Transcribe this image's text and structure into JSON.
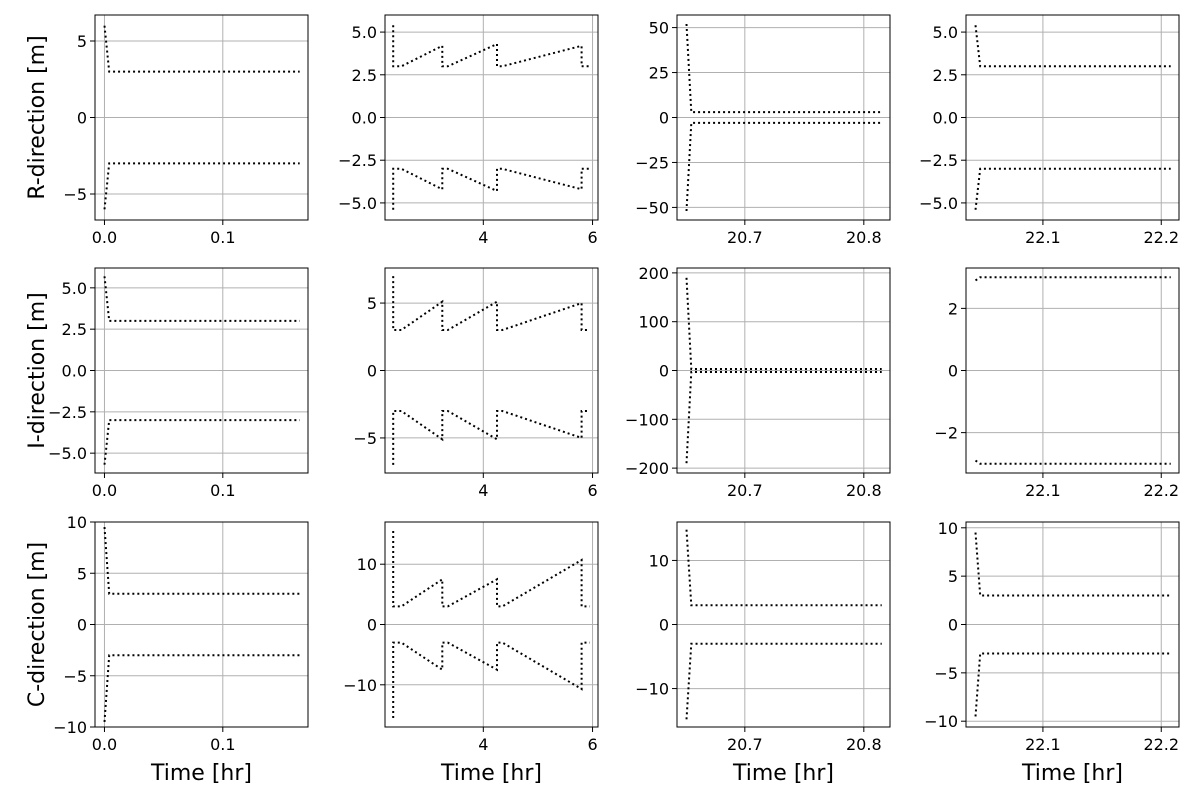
{
  "chart_data": [
    {
      "type": "line",
      "row": 0,
      "col": 0,
      "ylabel": "R-direction [m]",
      "xlabel": "",
      "xlim": [
        -0.008,
        0.172
      ],
      "ylim": [
        -6.7,
        6.7
      ],
      "xticks": [
        0.0,
        0.1
      ],
      "xtick_labels": [
        "0.0",
        "0.1"
      ],
      "yticks": [
        -5,
        0,
        5
      ],
      "ytick_labels": [
        "−5",
        "0",
        "5"
      ],
      "grid": true,
      "series": [
        {
          "x": [
            0.0,
            0.004,
            0.165
          ],
          "y": [
            6.0,
            3.0,
            3.0
          ]
        },
        {
          "x": [
            0.0,
            0.004,
            0.165
          ],
          "y": [
            -6.0,
            -3.0,
            -3.0
          ]
        }
      ]
    },
    {
      "type": "line",
      "row": 0,
      "col": 1,
      "ylabel": "",
      "xlabel": "",
      "xlim": [
        2.2,
        6.1
      ],
      "ylim": [
        -6.0,
        6.0
      ],
      "xticks": [
        4,
        6
      ],
      "xtick_labels": [
        "4",
        "6"
      ],
      "yticks": [
        -5.0,
        -2.5,
        0.0,
        2.5,
        5.0
      ],
      "ytick_labels": [
        "−5.0",
        "−2.5",
        "0.0",
        "2.5",
        "5.0"
      ],
      "grid": true,
      "series": [
        {
          "x": [
            2.35,
            2.35,
            2.5,
            3.25,
            3.25,
            3.35,
            4.25,
            4.25,
            4.35,
            5.8,
            5.8,
            5.9,
            5.95
          ],
          "y": [
            5.4,
            3.0,
            3.0,
            4.2,
            3.0,
            3.0,
            4.3,
            3.0,
            3.0,
            4.2,
            3.0,
            3.0,
            3.0
          ]
        },
        {
          "x": [
            2.35,
            2.35,
            2.5,
            3.25,
            3.25,
            3.35,
            4.25,
            4.25,
            4.35,
            5.8,
            5.8,
            5.9,
            5.95
          ],
          "y": [
            -5.4,
            -3.0,
            -3.0,
            -4.2,
            -3.0,
            -3.0,
            -4.3,
            -3.0,
            -3.0,
            -4.2,
            -3.0,
            -3.0,
            -3.0
          ]
        }
      ]
    },
    {
      "type": "line",
      "row": 0,
      "col": 2,
      "ylabel": "",
      "xlabel": "",
      "xlim": [
        20.643,
        20.822
      ],
      "ylim": [
        -57,
        57
      ],
      "xticks": [
        20.7,
        20.8
      ],
      "xtick_labels": [
        "20.7",
        "20.8"
      ],
      "yticks": [
        -50,
        -25,
        0,
        25,
        50
      ],
      "ytick_labels": [
        "−50",
        "−25",
        "0",
        "25",
        "50"
      ],
      "grid": true,
      "series": [
        {
          "x": [
            20.651,
            20.655,
            20.815
          ],
          "y": [
            52,
            3.0,
            3.0
          ]
        },
        {
          "x": [
            20.651,
            20.655,
            20.815
          ],
          "y": [
            -52,
            -3.0,
            -3.0
          ]
        }
      ]
    },
    {
      "type": "line",
      "row": 0,
      "col": 3,
      "ylabel": "",
      "xlabel": "",
      "xlim": [
        22.035,
        22.215
      ],
      "ylim": [
        -6.0,
        6.0
      ],
      "xticks": [
        22.1,
        22.2
      ],
      "xtick_labels": [
        "22.1",
        "22.2"
      ],
      "yticks": [
        -5.0,
        -2.5,
        0.0,
        2.5,
        5.0
      ],
      "ytick_labels": [
        "−5.0",
        "−2.5",
        "0.0",
        "2.5",
        "5.0"
      ],
      "grid": true,
      "series": [
        {
          "x": [
            22.043,
            22.047,
            22.208
          ],
          "y": [
            5.4,
            3.0,
            3.0
          ]
        },
        {
          "x": [
            22.043,
            22.047,
            22.208
          ],
          "y": [
            -5.4,
            -3.0,
            -3.0
          ]
        }
      ]
    },
    {
      "type": "line",
      "row": 1,
      "col": 0,
      "ylabel": "I-direction [m]",
      "xlabel": "",
      "xlim": [
        -0.008,
        0.172
      ],
      "ylim": [
        -6.2,
        6.2
      ],
      "xticks": [
        0.0,
        0.1
      ],
      "xtick_labels": [
        "0.0",
        "0.1"
      ],
      "yticks": [
        -5.0,
        -2.5,
        0.0,
        2.5,
        5.0
      ],
      "ytick_labels": [
        "−5.0",
        "−2.5",
        "0.0",
        "2.5",
        "5.0"
      ],
      "grid": true,
      "series": [
        {
          "x": [
            0.0,
            0.004,
            0.165
          ],
          "y": [
            5.7,
            3.0,
            3.0
          ]
        },
        {
          "x": [
            0.0,
            0.004,
            0.165
          ],
          "y": [
            -5.7,
            -3.0,
            -3.0
          ]
        }
      ]
    },
    {
      "type": "line",
      "row": 1,
      "col": 1,
      "ylabel": "",
      "xlabel": "",
      "xlim": [
        2.2,
        6.1
      ],
      "ylim": [
        -7.6,
        7.6
      ],
      "xticks": [
        4,
        6
      ],
      "xtick_labels": [
        "4",
        "6"
      ],
      "yticks": [
        -5,
        0,
        5
      ],
      "ytick_labels": [
        "−5",
        "0",
        "5"
      ],
      "grid": true,
      "series": [
        {
          "x": [
            2.35,
            2.35,
            2.5,
            3.25,
            3.25,
            3.35,
            4.25,
            4.25,
            4.35,
            5.8,
            5.8,
            5.9,
            5.95
          ],
          "y": [
            7.0,
            3.0,
            3.0,
            5.1,
            3.0,
            3.0,
            5.1,
            3.0,
            3.0,
            5.0,
            3.0,
            3.0,
            3.0
          ]
        },
        {
          "x": [
            2.35,
            2.35,
            2.5,
            3.25,
            3.25,
            3.35,
            4.25,
            4.25,
            4.35,
            5.8,
            5.8,
            5.9,
            5.95
          ],
          "y": [
            -7.0,
            -3.0,
            -3.0,
            -5.1,
            -3.0,
            -3.0,
            -5.1,
            -3.0,
            -3.0,
            -5.0,
            -3.0,
            -3.0,
            -3.0
          ]
        }
      ]
    },
    {
      "type": "line",
      "row": 1,
      "col": 2,
      "ylabel": "",
      "xlabel": "",
      "xlim": [
        20.643,
        20.822
      ],
      "ylim": [
        -210,
        210
      ],
      "xticks": [
        20.7,
        20.8
      ],
      "xtick_labels": [
        "20.7",
        "20.8"
      ],
      "yticks": [
        -200,
        -100,
        0,
        100,
        200
      ],
      "ytick_labels": [
        "−200",
        "−100",
        "0",
        "100",
        "200"
      ],
      "grid": true,
      "series": [
        {
          "x": [
            20.651,
            20.655,
            20.815
          ],
          "y": [
            190,
            3.0,
            3.0
          ]
        },
        {
          "x": [
            20.651,
            20.655,
            20.815
          ],
          "y": [
            -190,
            -3.0,
            -3.0
          ]
        }
      ]
    },
    {
      "type": "line",
      "row": 1,
      "col": 3,
      "ylabel": "",
      "xlabel": "",
      "xlim": [
        22.035,
        22.215
      ],
      "ylim": [
        -3.3,
        3.3
      ],
      "xticks": [
        22.1,
        22.2
      ],
      "xtick_labels": [
        "22.1",
        "22.2"
      ],
      "yticks": [
        -2,
        0,
        2
      ],
      "ytick_labels": [
        "−2",
        "0",
        "2"
      ],
      "grid": true,
      "series": [
        {
          "x": [
            22.043,
            22.047,
            22.208
          ],
          "y": [
            2.9,
            3.0,
            3.0
          ]
        },
        {
          "x": [
            22.043,
            22.047,
            22.208
          ],
          "y": [
            -2.9,
            -3.0,
            -3.0
          ]
        }
      ]
    },
    {
      "type": "line",
      "row": 2,
      "col": 0,
      "ylabel": "C-direction [m]",
      "xlabel": "Time [hr]",
      "xlim": [
        -0.008,
        0.172
      ],
      "ylim": [
        -10.0,
        10.0
      ],
      "xticks": [
        0.0,
        0.1
      ],
      "xtick_labels": [
        "0.0",
        "0.1"
      ],
      "yticks": [
        -10,
        -5,
        0,
        5,
        10
      ],
      "ytick_labels": [
        "−10",
        "−5",
        "0",
        "5",
        "10"
      ],
      "grid": true,
      "series": [
        {
          "x": [
            0.0,
            0.004,
            0.165
          ],
          "y": [
            9.5,
            3.0,
            3.0
          ]
        },
        {
          "x": [
            0.0,
            0.004,
            0.165
          ],
          "y": [
            -9.5,
            -3.0,
            -3.0
          ]
        }
      ]
    },
    {
      "type": "line",
      "row": 2,
      "col": 1,
      "ylabel": "",
      "xlabel": "Time [hr]",
      "xlim": [
        2.2,
        6.1
      ],
      "ylim": [
        -17,
        17
      ],
      "xticks": [
        4,
        6
      ],
      "xtick_labels": [
        "4",
        "6"
      ],
      "yticks": [
        -10,
        0,
        10
      ],
      "ytick_labels": [
        "−10",
        "0",
        "10"
      ],
      "grid": true,
      "series": [
        {
          "x": [
            2.35,
            2.35,
            2.5,
            3.25,
            3.25,
            3.35,
            4.25,
            4.25,
            4.35,
            5.8,
            5.8,
            5.9,
            5.95
          ],
          "y": [
            15.5,
            3.0,
            3.0,
            7.5,
            3.0,
            3.0,
            7.5,
            3.0,
            3.0,
            10.7,
            3.0,
            3.0,
            3.0
          ]
        },
        {
          "x": [
            2.35,
            2.35,
            2.5,
            3.25,
            3.25,
            3.35,
            4.25,
            4.25,
            4.35,
            5.8,
            5.8,
            5.9,
            5.95
          ],
          "y": [
            -15.5,
            -3.0,
            -3.0,
            -7.5,
            -3.0,
            -3.0,
            -7.5,
            -3.0,
            -3.0,
            -10.7,
            -3.0,
            -3.0,
            -3.0
          ]
        }
      ]
    },
    {
      "type": "line",
      "row": 2,
      "col": 2,
      "ylabel": "",
      "xlabel": "Time [hr]",
      "xlim": [
        20.643,
        20.822
      ],
      "ylim": [
        -16,
        16
      ],
      "xticks": [
        20.7,
        20.8
      ],
      "xtick_labels": [
        "20.7",
        "20.8"
      ],
      "yticks": [
        -10,
        0,
        10
      ],
      "ytick_labels": [
        "−10",
        "0",
        "10"
      ],
      "grid": true,
      "series": [
        {
          "x": [
            20.651,
            20.655,
            20.815
          ],
          "y": [
            14.8,
            3.0,
            3.0
          ]
        },
        {
          "x": [
            20.651,
            20.655,
            20.815
          ],
          "y": [
            -14.8,
            -3.0,
            -3.0
          ]
        }
      ]
    },
    {
      "type": "line",
      "row": 2,
      "col": 3,
      "ylabel": "",
      "xlabel": "Time [hr]",
      "xlim": [
        22.035,
        22.215
      ],
      "ylim": [
        -10.6,
        10.6
      ],
      "xticks": [
        22.1,
        22.2
      ],
      "xtick_labels": [
        "22.1",
        "22.2"
      ],
      "yticks": [
        -10,
        -5,
        0,
        5,
        10
      ],
      "ytick_labels": [
        "−10",
        "−5",
        "0",
        "5",
        "10"
      ],
      "grid": true,
      "series": [
        {
          "x": [
            22.043,
            22.047,
            22.208
          ],
          "y": [
            9.5,
            3.0,
            3.0
          ]
        },
        {
          "x": [
            22.043,
            22.047,
            22.208
          ],
          "y": [
            -9.5,
            -3.0,
            -3.0
          ]
        }
      ]
    }
  ]
}
